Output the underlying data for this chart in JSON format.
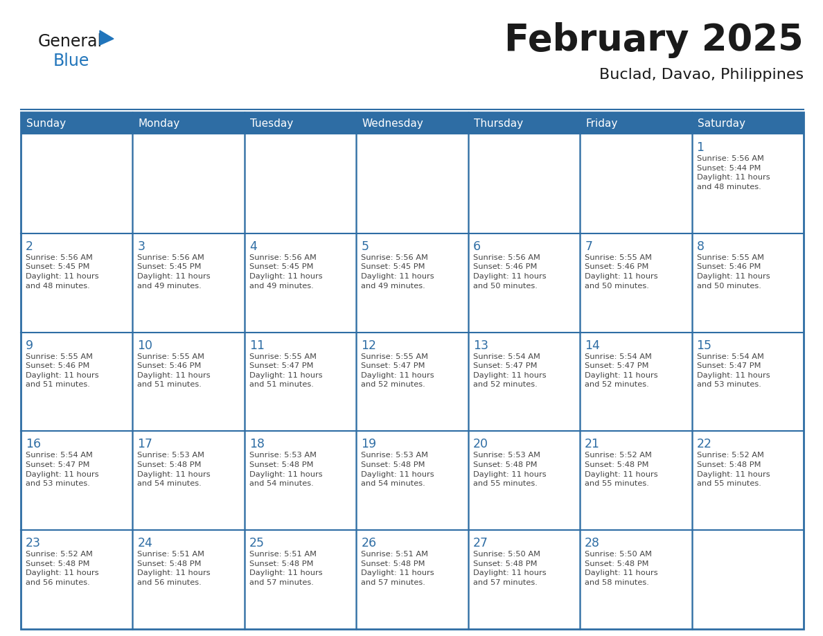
{
  "title": "February 2025",
  "subtitle": "Buclad, Davao, Philippines",
  "header_color": "#2E6DA4",
  "header_text_color": "#FFFFFF",
  "cell_bg_color": "#FFFFFF",
  "cell_text_color": "#333333",
  "day_number_color": "#2E6DA4",
  "border_color": "#2E6DA4",
  "logo_general_color": "#1a1a1a",
  "logo_blue_color": "#2175BB",
  "logo_triangle_color": "#2175BB",
  "days_of_week": [
    "Sunday",
    "Monday",
    "Tuesday",
    "Wednesday",
    "Thursday",
    "Friday",
    "Saturday"
  ],
  "weeks": [
    [
      {
        "day": null,
        "sunrise": null,
        "sunset": null,
        "daylight": null
      },
      {
        "day": null,
        "sunrise": null,
        "sunset": null,
        "daylight": null
      },
      {
        "day": null,
        "sunrise": null,
        "sunset": null,
        "daylight": null
      },
      {
        "day": null,
        "sunrise": null,
        "sunset": null,
        "daylight": null
      },
      {
        "day": null,
        "sunrise": null,
        "sunset": null,
        "daylight": null
      },
      {
        "day": null,
        "sunrise": null,
        "sunset": null,
        "daylight": null
      },
      {
        "day": 1,
        "sunrise": "5:56 AM",
        "sunset": "5:44 PM",
        "daylight": "11 hours\nand 48 minutes."
      }
    ],
    [
      {
        "day": 2,
        "sunrise": "5:56 AM",
        "sunset": "5:45 PM",
        "daylight": "11 hours\nand 48 minutes."
      },
      {
        "day": 3,
        "sunrise": "5:56 AM",
        "sunset": "5:45 PM",
        "daylight": "11 hours\nand 49 minutes."
      },
      {
        "day": 4,
        "sunrise": "5:56 AM",
        "sunset": "5:45 PM",
        "daylight": "11 hours\nand 49 minutes."
      },
      {
        "day": 5,
        "sunrise": "5:56 AM",
        "sunset": "5:45 PM",
        "daylight": "11 hours\nand 49 minutes."
      },
      {
        "day": 6,
        "sunrise": "5:56 AM",
        "sunset": "5:46 PM",
        "daylight": "11 hours\nand 50 minutes."
      },
      {
        "day": 7,
        "sunrise": "5:55 AM",
        "sunset": "5:46 PM",
        "daylight": "11 hours\nand 50 minutes."
      },
      {
        "day": 8,
        "sunrise": "5:55 AM",
        "sunset": "5:46 PM",
        "daylight": "11 hours\nand 50 minutes."
      }
    ],
    [
      {
        "day": 9,
        "sunrise": "5:55 AM",
        "sunset": "5:46 PM",
        "daylight": "11 hours\nand 51 minutes."
      },
      {
        "day": 10,
        "sunrise": "5:55 AM",
        "sunset": "5:46 PM",
        "daylight": "11 hours\nand 51 minutes."
      },
      {
        "day": 11,
        "sunrise": "5:55 AM",
        "sunset": "5:47 PM",
        "daylight": "11 hours\nand 51 minutes."
      },
      {
        "day": 12,
        "sunrise": "5:55 AM",
        "sunset": "5:47 PM",
        "daylight": "11 hours\nand 52 minutes."
      },
      {
        "day": 13,
        "sunrise": "5:54 AM",
        "sunset": "5:47 PM",
        "daylight": "11 hours\nand 52 minutes."
      },
      {
        "day": 14,
        "sunrise": "5:54 AM",
        "sunset": "5:47 PM",
        "daylight": "11 hours\nand 52 minutes."
      },
      {
        "day": 15,
        "sunrise": "5:54 AM",
        "sunset": "5:47 PM",
        "daylight": "11 hours\nand 53 minutes."
      }
    ],
    [
      {
        "day": 16,
        "sunrise": "5:54 AM",
        "sunset": "5:47 PM",
        "daylight": "11 hours\nand 53 minutes."
      },
      {
        "day": 17,
        "sunrise": "5:53 AM",
        "sunset": "5:48 PM",
        "daylight": "11 hours\nand 54 minutes."
      },
      {
        "day": 18,
        "sunrise": "5:53 AM",
        "sunset": "5:48 PM",
        "daylight": "11 hours\nand 54 minutes."
      },
      {
        "day": 19,
        "sunrise": "5:53 AM",
        "sunset": "5:48 PM",
        "daylight": "11 hours\nand 54 minutes."
      },
      {
        "day": 20,
        "sunrise": "5:53 AM",
        "sunset": "5:48 PM",
        "daylight": "11 hours\nand 55 minutes."
      },
      {
        "day": 21,
        "sunrise": "5:52 AM",
        "sunset": "5:48 PM",
        "daylight": "11 hours\nand 55 minutes."
      },
      {
        "day": 22,
        "sunrise": "5:52 AM",
        "sunset": "5:48 PM",
        "daylight": "11 hours\nand 55 minutes."
      }
    ],
    [
      {
        "day": 23,
        "sunrise": "5:52 AM",
        "sunset": "5:48 PM",
        "daylight": "11 hours\nand 56 minutes."
      },
      {
        "day": 24,
        "sunrise": "5:51 AM",
        "sunset": "5:48 PM",
        "daylight": "11 hours\nand 56 minutes."
      },
      {
        "day": 25,
        "sunrise": "5:51 AM",
        "sunset": "5:48 PM",
        "daylight": "11 hours\nand 57 minutes."
      },
      {
        "day": 26,
        "sunrise": "5:51 AM",
        "sunset": "5:48 PM",
        "daylight": "11 hours\nand 57 minutes."
      },
      {
        "day": 27,
        "sunrise": "5:50 AM",
        "sunset": "5:48 PM",
        "daylight": "11 hours\nand 57 minutes."
      },
      {
        "day": 28,
        "sunrise": "5:50 AM",
        "sunset": "5:48 PM",
        "daylight": "11 hours\nand 58 minutes."
      },
      {
        "day": null,
        "sunrise": null,
        "sunset": null,
        "daylight": null
      }
    ]
  ]
}
